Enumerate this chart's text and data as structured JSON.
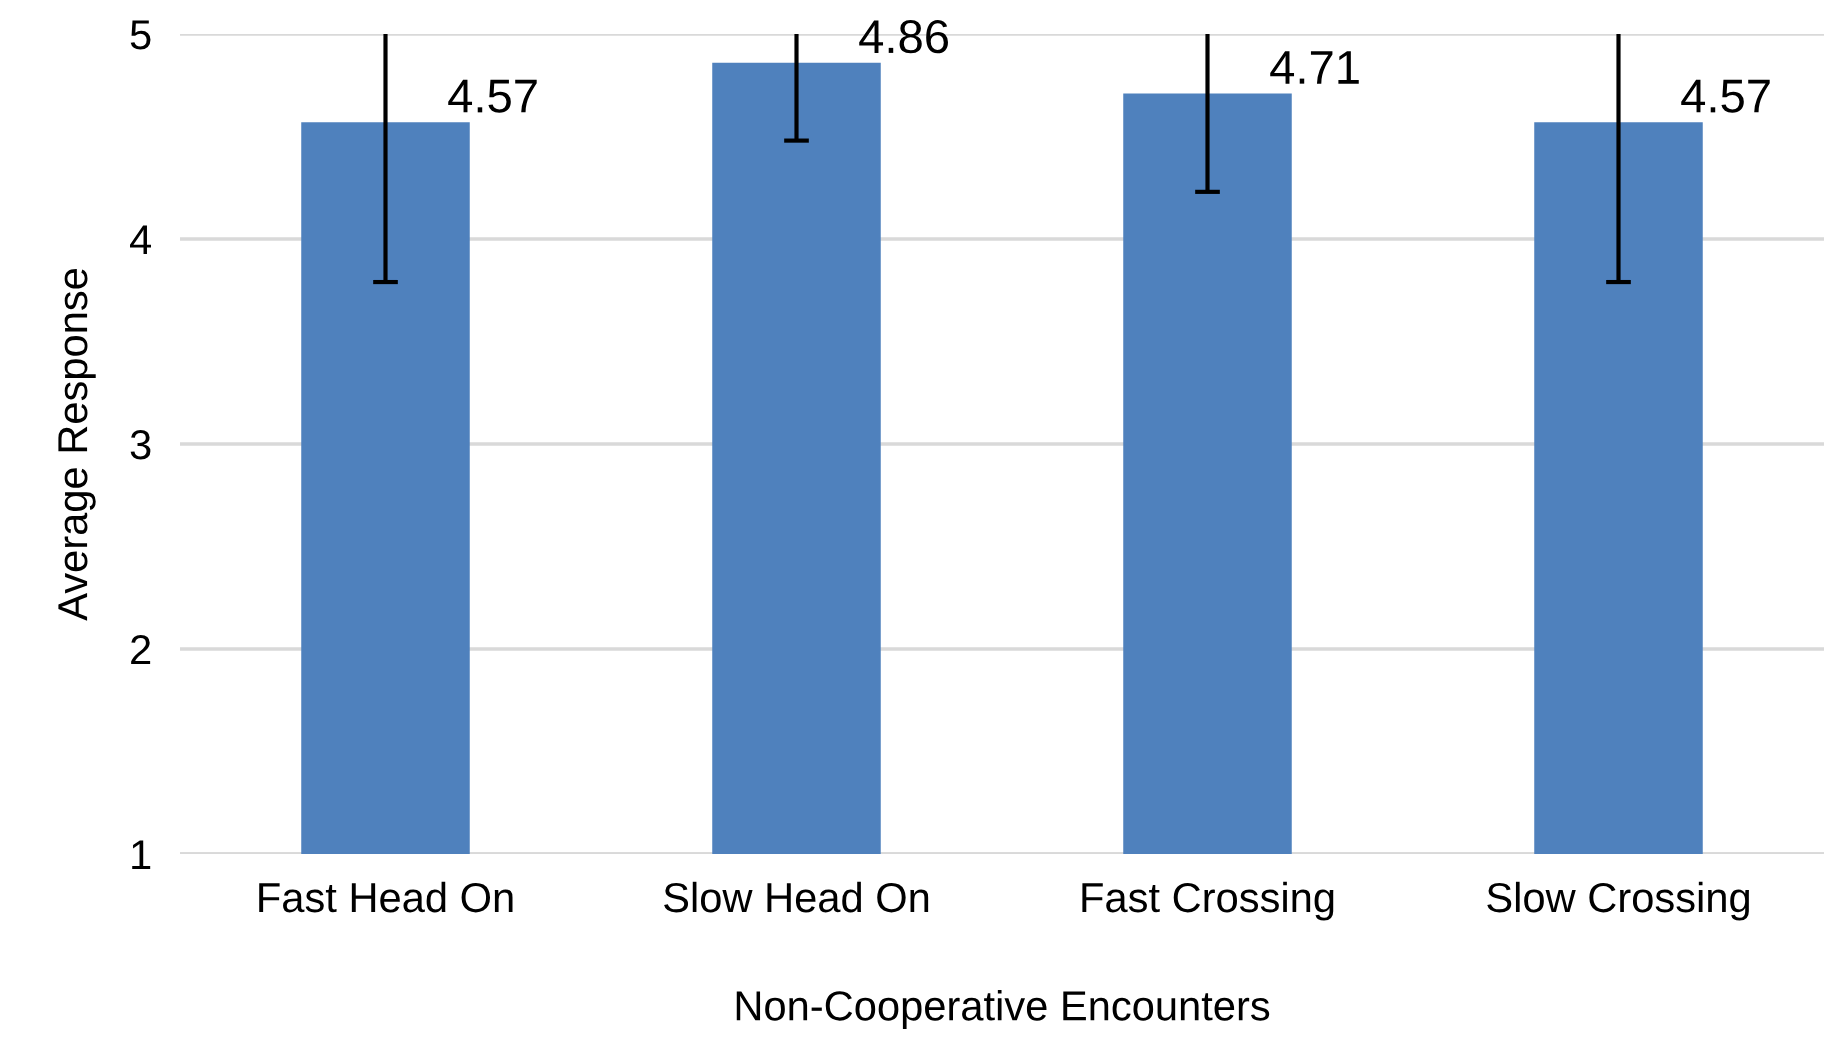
{
  "chart_data": {
    "type": "bar",
    "xlabel": "Non-Cooperative Encounters",
    "ylabel": "Average Response",
    "categories": [
      "Fast Head On",
      "Slow Head On",
      "Fast Crossing",
      "Slow Crossing"
    ],
    "values": [
      4.57,
      4.86,
      4.71,
      4.57
    ],
    "errors": [
      [
        3.79,
        5
      ],
      [
        4.48,
        5
      ],
      [
        4.23,
        5
      ],
      [
        3.79,
        5
      ]
    ],
    "color": "#4f81bd",
    "ylim": [
      1,
      5
    ],
    "yticks": [
      1,
      2,
      3,
      4,
      5
    ],
    "grid": "y",
    "data_labels": true,
    "legend": false
  }
}
